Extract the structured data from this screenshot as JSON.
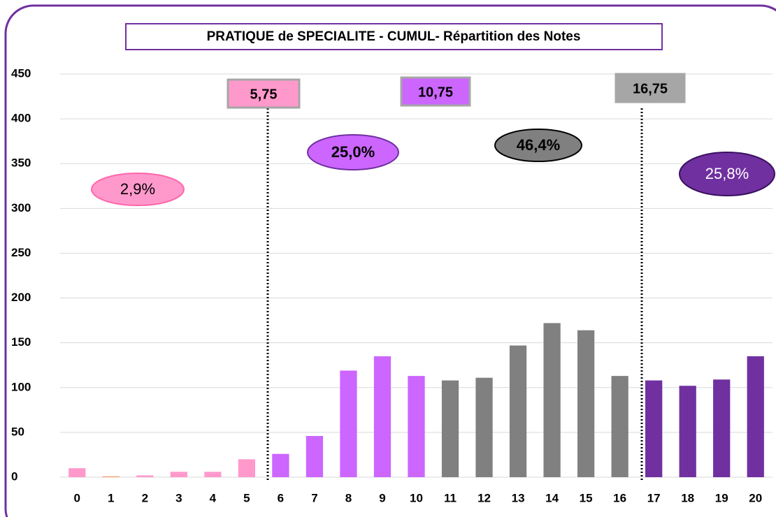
{
  "chart_data": {
    "type": "bar",
    "title": "PRATIQUE de SPECIALITE  - CUMUL- Répartition des Notes",
    "categories": [
      "0",
      "1",
      "2",
      "3",
      "4",
      "5",
      "6",
      "7",
      "8",
      "9",
      "10",
      "11",
      "12",
      "13",
      "14",
      "15",
      "16",
      "17",
      "18",
      "19",
      "20"
    ],
    "values": [
      10,
      1,
      2,
      6,
      6,
      20,
      26,
      46,
      119,
      135,
      113,
      108,
      111,
      147,
      172,
      164,
      113,
      108,
      102,
      109,
      135
    ],
    "colors": [
      "#ff99cc",
      "#f4a070",
      "#ff99cc",
      "#ff99cc",
      "#ff99cc",
      "#ff99cc",
      "#cc66ff",
      "#cc66ff",
      "#cc66ff",
      "#cc66ff",
      "#cc66ff",
      "#808080",
      "#808080",
      "#808080",
      "#808080",
      "#808080",
      "#808080",
      "#7030a0",
      "#7030a0",
      "#7030a0",
      "#7030a0"
    ],
    "ylim": [
      0,
      450
    ],
    "yticks": [
      0,
      50,
      100,
      150,
      200,
      250,
      300,
      350,
      400,
      450
    ],
    "grid": true,
    "thresholds": [
      {
        "label": "5,75",
        "color": "#ff99cc"
      },
      {
        "label": "10,75",
        "color": "#cc66ff"
      },
      {
        "label": "16,75",
        "color": "#a6a6a6"
      }
    ],
    "shares": [
      {
        "label": "2,9%",
        "color": "#ff99cc"
      },
      {
        "label": "25,0%",
        "color": "#cc66ff"
      },
      {
        "label": "46,4%",
        "color": "#808080"
      },
      {
        "label": "25,8%",
        "color": "#7030a0"
      }
    ]
  }
}
